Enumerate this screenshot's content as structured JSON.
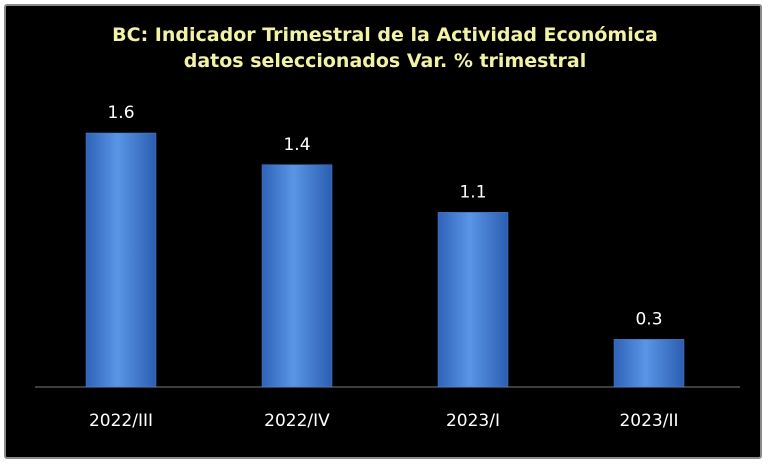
{
  "chart_data": {
    "type": "bar",
    "title": "BC: Indicador Trimestral de la Actividad Económica datos seleccionados Var. % trimestral",
    "categories": [
      "2022/III",
      "2022/IV",
      "2023/I",
      "2023/II"
    ],
    "values": [
      1.6,
      1.4,
      1.1,
      0.3
    ],
    "color": "#4a86d8"
  }
}
